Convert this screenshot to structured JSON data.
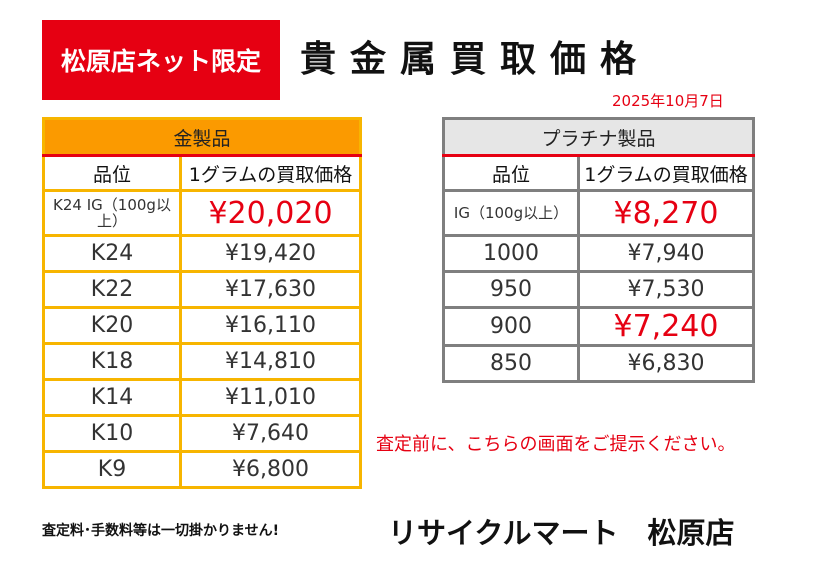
{
  "banner": "松原店ネット限定",
  "title": "貴金属買取価格",
  "date": "2025年10月7日",
  "gold": {
    "header": "金製品",
    "col_grade": "品位",
    "col_price": "1グラムの買取価格",
    "rows": [
      {
        "grade": "K24 IG（100g以上）",
        "price": "¥20,020",
        "highlight": true
      },
      {
        "grade": "K24",
        "price": "¥19,420"
      },
      {
        "grade": "K22",
        "price": "¥17,630"
      },
      {
        "grade": "K20",
        "price": "¥16,110"
      },
      {
        "grade": "K18",
        "price": "¥14,810"
      },
      {
        "grade": "K14",
        "price": "¥11,010"
      },
      {
        "grade": "K10",
        "price": "¥7,640"
      },
      {
        "grade": "K9",
        "price": "¥6,800"
      }
    ]
  },
  "platinum": {
    "header": "プラチナ製品",
    "col_grade": "品位",
    "col_price": "1グラムの買取価格",
    "rows": [
      {
        "grade": "IG（100g以上）",
        "price": "¥8,270",
        "highlight": true
      },
      {
        "grade": "1000",
        "price": "¥7,940"
      },
      {
        "grade": "950",
        "price": "¥7,530"
      },
      {
        "grade": "900",
        "price": "¥7,240",
        "highlight": true
      },
      {
        "grade": "850",
        "price": "¥6,830"
      }
    ]
  },
  "notice": "査定前に、こちらの画面をご提示ください。",
  "fee_note": "査定料･手数料等は一切掛かりません!",
  "store_name": "リサイクルマート　松原店",
  "colors": {
    "red": "#e60012",
    "gold_header": "#fb9a00",
    "gold_line": "#f7b500",
    "plat_header": "#e6e6e6",
    "plat_line": "#7f7f7f"
  }
}
